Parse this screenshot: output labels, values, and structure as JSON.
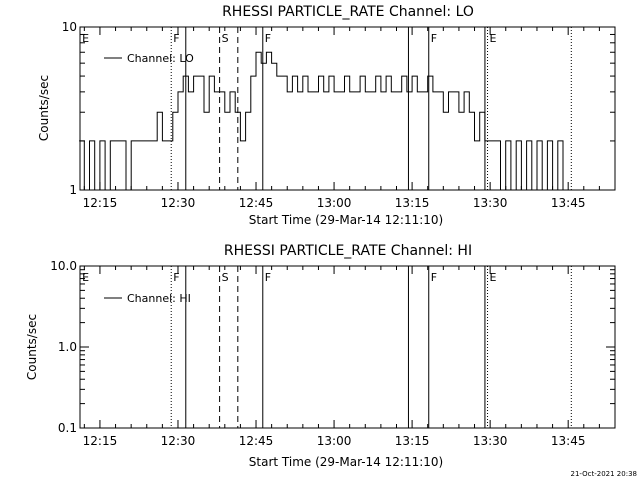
{
  "chart_data": [
    {
      "type": "line",
      "title": "RHESSI PARTICLE_RATE Channel: LO",
      "xlabel": "Start Time (29-Mar-14 12:11:10)",
      "ylabel": "Counts/sec",
      "yscale": "log",
      "ylim": [
        1,
        10
      ],
      "y_ticks": [
        1,
        10
      ],
      "y_tick_labels": [
        "1",
        "10"
      ],
      "xlim": [
        "12:11:10",
        "13:54:00"
      ],
      "x_ticks": [
        "12:15",
        "12:30",
        "12:45",
        "13:00",
        "13:15",
        "13:30",
        "13:45"
      ],
      "grid": false,
      "legend": {
        "placement": "top-left",
        "entries": [
          "Channel: LO"
        ]
      },
      "series": [
        {
          "name": "Channel: LO",
          "x": [
            "12:11",
            "12:12",
            "12:13",
            "12:14",
            "12:15",
            "12:16",
            "12:17",
            "12:18",
            "12:19",
            "12:20",
            "12:21",
            "12:22",
            "12:23",
            "12:24",
            "12:25",
            "12:26",
            "12:27",
            "12:28",
            "12:29",
            "12:30",
            "12:31",
            "12:32",
            "12:33",
            "12:34",
            "12:35",
            "12:36",
            "12:37",
            "12:38",
            "12:39",
            "12:40",
            "12:41",
            "12:42",
            "12:43",
            "12:44",
            "12:45",
            "12:46",
            "12:47",
            "12:48",
            "12:49",
            "12:50",
            "12:51",
            "12:52",
            "12:53",
            "12:54",
            "12:55",
            "12:56",
            "12:57",
            "12:58",
            "12:59",
            "13:00",
            "13:01",
            "13:02",
            "13:03",
            "13:04",
            "13:05",
            "13:06",
            "13:07",
            "13:08",
            "13:09",
            "13:10",
            "13:11",
            "13:12",
            "13:13",
            "13:14",
            "13:15",
            "13:16",
            "13:17",
            "13:18",
            "13:19",
            "13:20",
            "13:21",
            "13:22",
            "13:23",
            "13:24",
            "13:25",
            "13:26",
            "13:27",
            "13:28",
            "13:29",
            "13:30",
            "13:31",
            "13:32",
            "13:33",
            "13:34",
            "13:35",
            "13:36",
            "13:37",
            "13:38",
            "13:39",
            "13:40",
            "13:41",
            "13:42",
            "13:43",
            "13:44",
            "13:45",
            "13:46"
          ],
          "y": [
            2,
            1,
            2,
            1,
            2,
            1,
            2,
            2,
            2,
            1,
            2,
            2,
            2,
            2,
            2,
            3,
            2,
            2,
            3,
            4,
            5,
            4,
            5,
            5,
            3,
            5,
            4,
            4,
            3,
            4,
            3,
            2,
            3,
            5,
            7,
            6,
            7,
            6,
            5,
            5,
            4,
            5,
            4,
            5,
            4,
            4,
            5,
            4,
            5,
            4,
            4,
            5,
            4,
            4,
            5,
            4,
            4,
            5,
            4,
            5,
            4,
            4,
            5,
            4,
            5,
            4,
            4,
            5,
            4,
            4,
            3,
            4,
            4,
            3,
            4,
            3,
            2,
            3,
            2,
            2,
            2,
            1,
            2,
            1,
            2,
            1,
            2,
            1,
            2,
            1,
            2,
            1,
            2,
            1,
            1,
            1
          ]
        }
      ],
      "annotations": [
        "E",
        "F",
        "S",
        "F",
        "F",
        "E"
      ]
    },
    {
      "type": "line",
      "title": "RHESSI PARTICLE_RATE Channel: HI",
      "xlabel": "Start Time (29-Mar-14 12:11:10)",
      "ylabel": "Counts/sec",
      "yscale": "log",
      "ylim": [
        0.1,
        10
      ],
      "y_ticks": [
        0.1,
        1,
        10
      ],
      "y_tick_labels": [
        "0.1",
        "1.0",
        "10.0"
      ],
      "xlim": [
        "12:11:10",
        "13:54:00"
      ],
      "x_ticks": [
        "12:15",
        "12:30",
        "12:45",
        "13:00",
        "13:15",
        "13:30",
        "13:45"
      ],
      "grid": false,
      "legend": {
        "placement": "top-left",
        "entries": [
          "Channel: HI"
        ]
      },
      "series": [
        {
          "name": "Channel: HI",
          "x": [],
          "y": []
        }
      ],
      "annotations": [
        "E",
        "F",
        "S",
        "F",
        "F",
        "E"
      ]
    }
  ],
  "timestamp": "21-Oct-2021 20:38"
}
